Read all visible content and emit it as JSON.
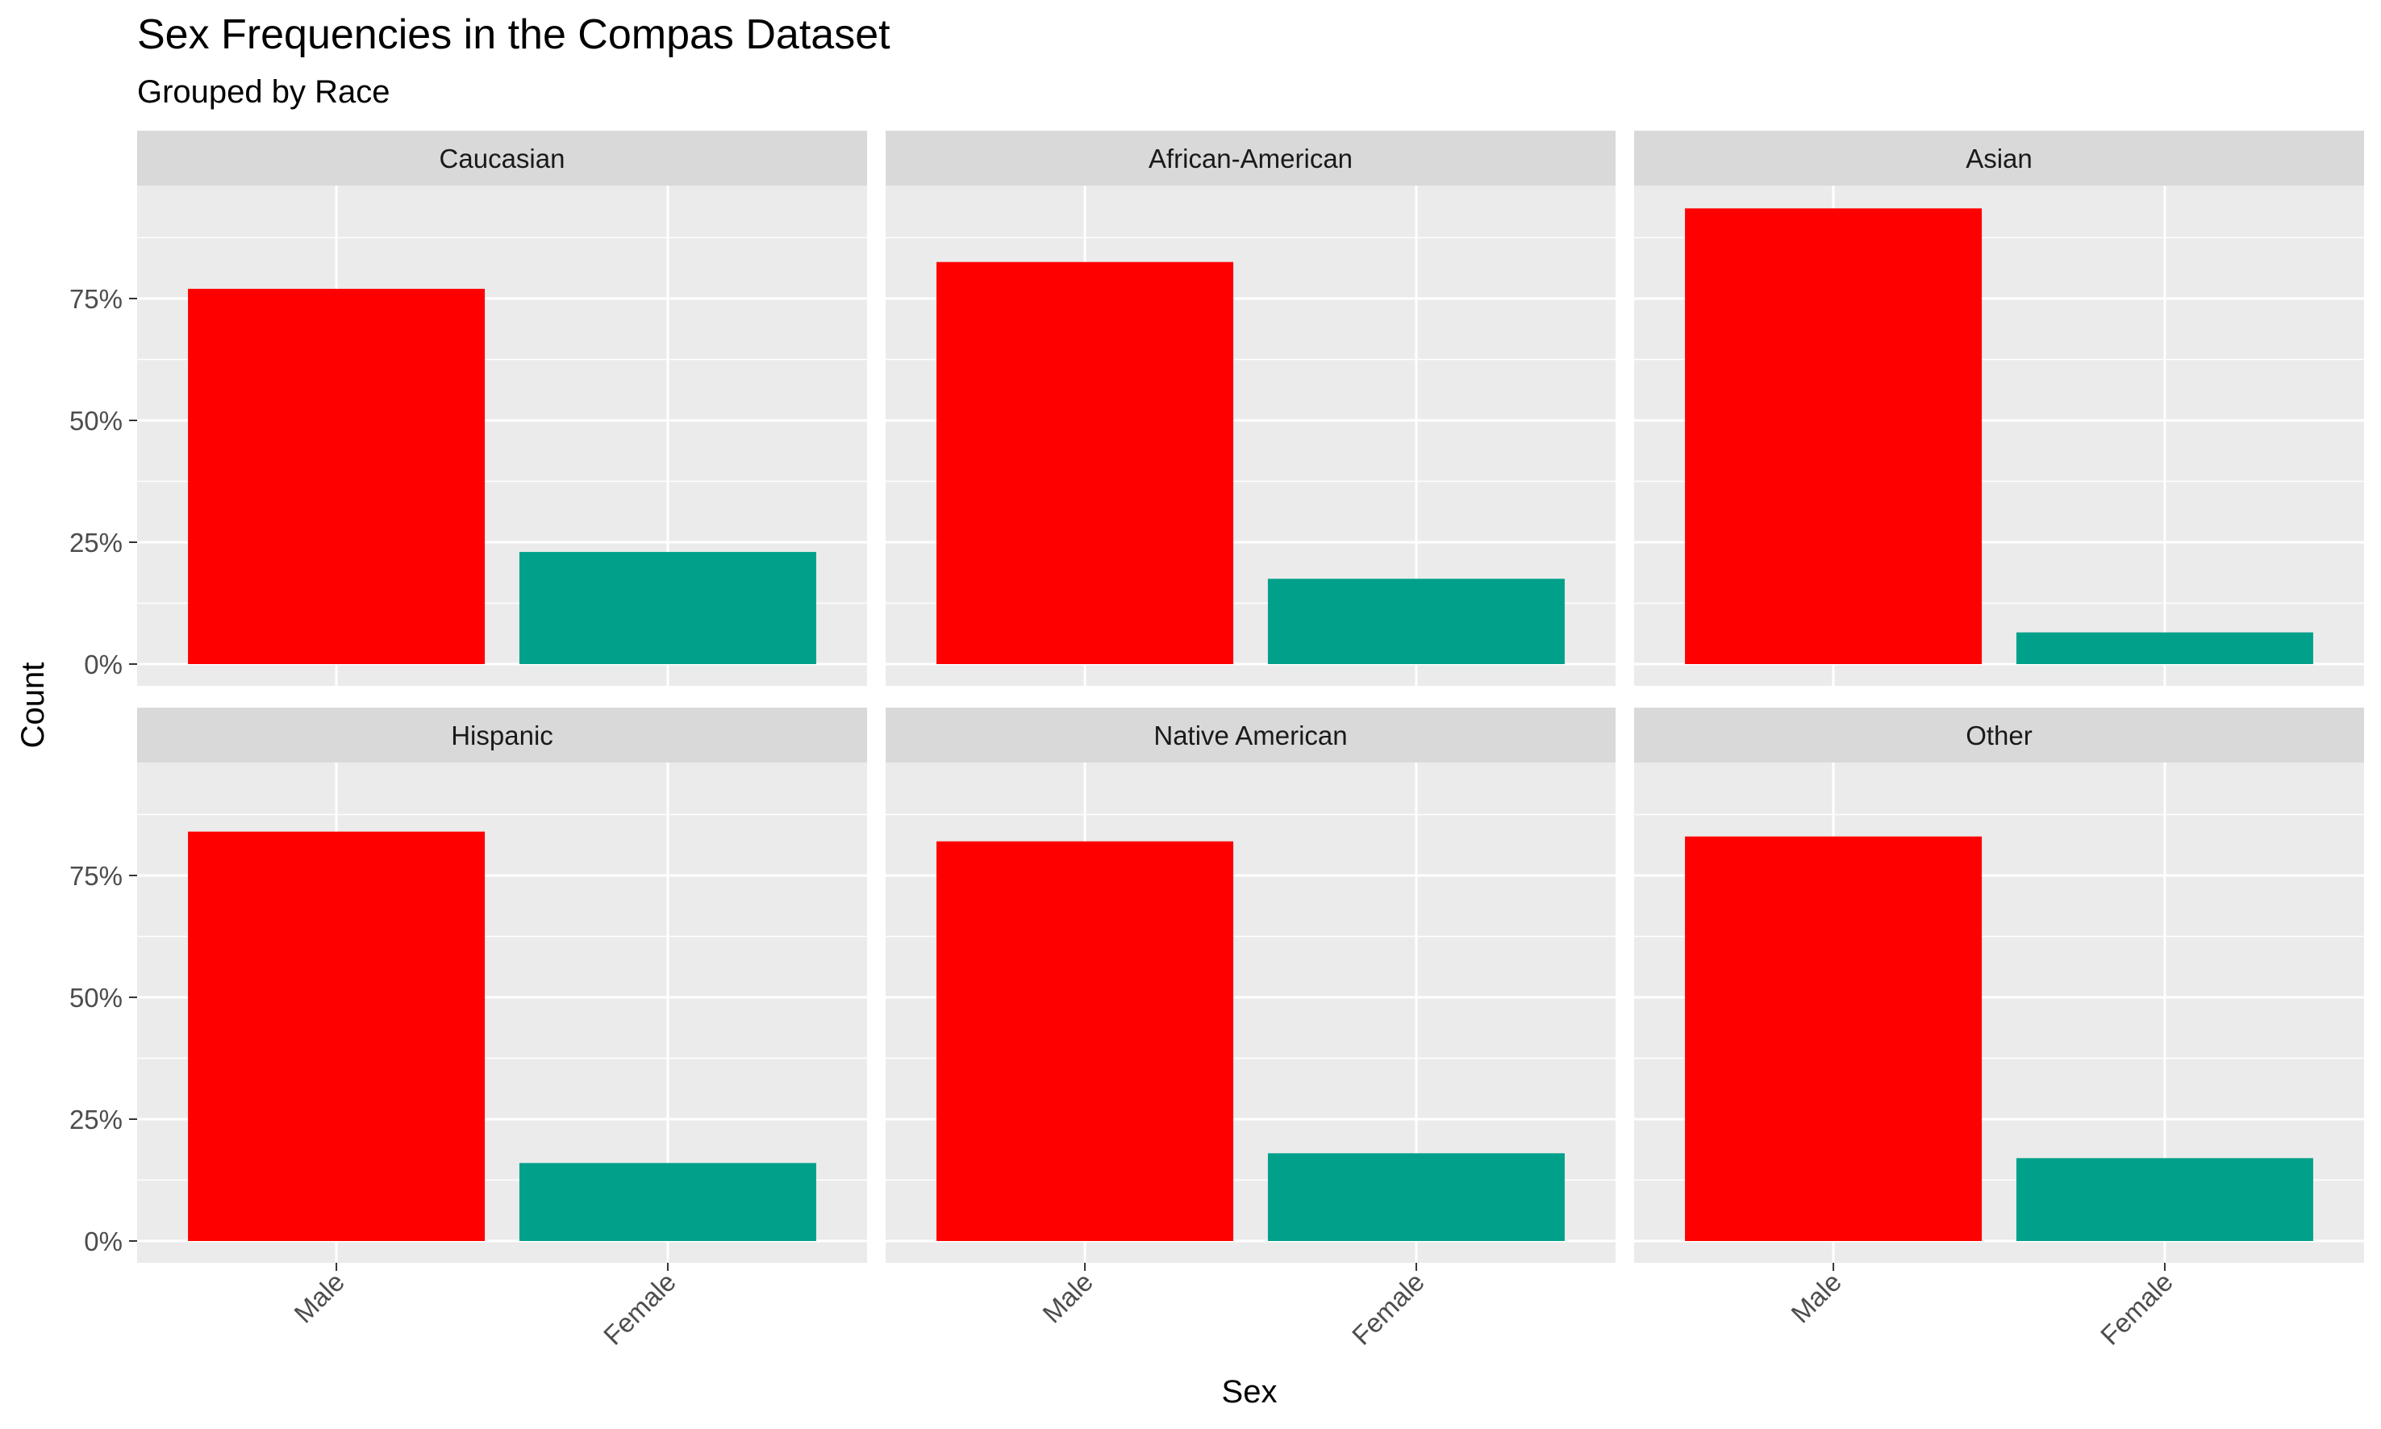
{
  "chart_data": {
    "type": "bar",
    "title": "Sex Frequencies in the Compas Dataset",
    "subtitle": "Grouped by Race",
    "xlabel": "Sex",
    "ylabel": "Count",
    "categories": [
      "Male",
      "Female"
    ],
    "y_tick_labels": [
      "0%",
      "25%",
      "50%",
      "75%"
    ],
    "y_ticks": [
      0,
      0.25,
      0.5,
      0.75
    ],
    "ylim": [
      0,
      1
    ],
    "grid": true,
    "legend": "none",
    "colors": {
      "Male": "#ff0000",
      "Female": "#00a08a",
      "panel_bg": "#ebebeb",
      "strip_bg": "#d9d9d9",
      "grid": "#ffffff"
    },
    "panels": [
      {
        "name": "Caucasian",
        "values": [
          0.77,
          0.23
        ]
      },
      {
        "name": "African-American",
        "values": [
          0.825,
          0.175
        ]
      },
      {
        "name": "Asian",
        "values": [
          0.935,
          0.065
        ]
      },
      {
        "name": "Hispanic",
        "values": [
          0.84,
          0.16
        ]
      },
      {
        "name": "Native American",
        "values": [
          0.82,
          0.18
        ]
      },
      {
        "name": "Other",
        "values": [
          0.83,
          0.17
        ]
      }
    ]
  }
}
